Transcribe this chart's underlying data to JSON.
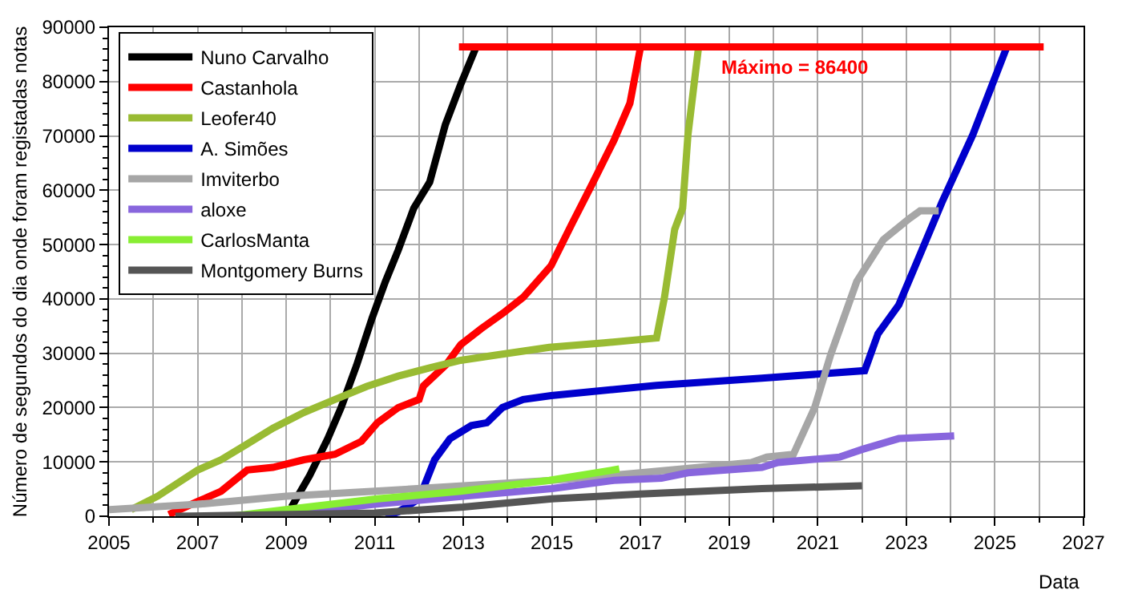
{
  "chart_data": {
    "type": "line",
    "xlabel": "Data",
    "ylabel": "Número de segundos do dia onde foram registadas notas",
    "xlim": [
      2005,
      2027
    ],
    "xticks": [
      2005,
      2007,
      2009,
      2011,
      2013,
      2015,
      2017,
      2019,
      2021,
      2023,
      2025,
      2027
    ],
    "ylim": [
      0,
      90000
    ],
    "yticks": [
      0,
      10000,
      20000,
      30000,
      40000,
      50000,
      60000,
      70000,
      80000,
      90000
    ],
    "grid": true,
    "legend": "top left",
    "marker": "none",
    "line_style": "solid",
    "annotations": [
      {
        "text": "Máximo = 86400",
        "x": 2020.5,
        "y": 86400
      }
    ],
    "series": [
      {
        "name": "Nuno Carvalho",
        "color": "#000000",
        "x": [
          2009.12,
          2009.53,
          2009.94,
          2010.24,
          2010.59,
          2010.94,
          2011.24,
          2011.53,
          2011.88,
          2012.24,
          2012.59,
          2012.94,
          2013.29
        ],
        "values": [
          1700,
          7500,
          14300,
          20000,
          27800,
          36500,
          43200,
          49000,
          56700,
          61500,
          72000,
          79500,
          86400
        ]
      },
      {
        "name": "Castanhola",
        "color": "#ff0000",
        "x": [
          2006.35,
          2007.0,
          2007.53,
          2008.12,
          2008.7,
          2009.4,
          2010.1,
          2010.7,
          2011.06,
          2011.53,
          2012.0,
          2012.1,
          2012.6,
          2012.94,
          2013.4,
          2013.9,
          2014.35,
          2014.98,
          2015.45,
          2015.93,
          2016.4,
          2016.76,
          2017.0
        ],
        "values": [
          300,
          2700,
          4600,
          8500,
          9000,
          10400,
          11400,
          13800,
          17200,
          20000,
          21500,
          24000,
          27800,
          31600,
          34500,
          37400,
          40300,
          46100,
          53800,
          61500,
          69200,
          76000,
          86400
        ]
      },
      {
        "name": "Leofer40",
        "color": "#99bb33",
        "x": [
          2005.5,
          2006.1,
          2007.0,
          2007.53,
          2008.12,
          2008.7,
          2009.4,
          2010.1,
          2010.82,
          2011.53,
          2012.24,
          2012.94,
          2013.76,
          2014.94,
          2016.17,
          2017.36,
          2017.54,
          2017.77,
          2017.95,
          2018.07,
          2018.31
        ],
        "values": [
          1200,
          3700,
          8500,
          10400,
          13300,
          16200,
          19100,
          21500,
          23900,
          25800,
          27300,
          28700,
          29700,
          31100,
          31900,
          32800,
          40300,
          52800,
          56700,
          70200,
          86400
        ]
      },
      {
        "name": "A. Simões",
        "color": "#0000cc",
        "x": [
          2011.24,
          2011.53,
          2012.0,
          2012.35,
          2012.7,
          2013.18,
          2013.53,
          2013.88,
          2014.35,
          2014.98,
          2017.36,
          2019.74,
          2022.06,
          2022.36,
          2022.83,
          2023.3,
          2023.8,
          2024.5,
          2025.27
        ],
        "values": [
          0,
          800,
          3200,
          10400,
          14300,
          16700,
          17200,
          20000,
          21500,
          22200,
          24100,
          25400,
          26800,
          33600,
          38900,
          48000,
          57700,
          70200,
          86400
        ]
      },
      {
        "name": "Imviterbo",
        "color": "#a6a6a6",
        "x": [
          2005.0,
          2007.0,
          2009.0,
          2011.0,
          2013.0,
          2015.0,
          2017.0,
          2019.5,
          2019.85,
          2020.45,
          2020.93,
          2021.29,
          2021.88,
          2022.48,
          2023.07,
          2023.31,
          2023.73
        ],
        "values": [
          1200,
          2200,
          3700,
          4600,
          5600,
          6600,
          8000,
          9900,
          10900,
          11400,
          20000,
          29700,
          43200,
          50900,
          54800,
          56200,
          56200
        ]
      },
      {
        "name": "aloxe",
        "color": "#8866dd",
        "x": [
          2008.5,
          2011.0,
          2013.0,
          2015.0,
          2016.4,
          2017.47,
          2018.07,
          2019.74,
          2020.1,
          2021.5,
          2022.0,
          2022.83,
          2024.08
        ],
        "values": [
          0,
          2200,
          3700,
          5100,
          6600,
          7000,
          8000,
          9000,
          9900,
          10900,
          12300,
          14300,
          14800
        ]
      },
      {
        "name": "CarlosManta",
        "color": "#88ee33",
        "x": [
          2007.76,
          2009.06,
          2011.06,
          2012.94,
          2014.94,
          2016.52
        ],
        "values": [
          0,
          1300,
          3200,
          4600,
          6600,
          8700
        ]
      },
      {
        "name": "Montgomery Burns",
        "color": "#555555",
        "x": [
          2006.5,
          2011.0,
          2013.0,
          2015.0,
          2017.0,
          2019.74,
          2022.0
        ],
        "values": [
          0,
          600,
          1700,
          3200,
          4100,
          5100,
          5600
        ]
      },
      {
        "color": "#ff0000",
        "x": [
          2012.9,
          2026.1
        ],
        "values": [
          86400,
          86400
        ]
      }
    ]
  }
}
